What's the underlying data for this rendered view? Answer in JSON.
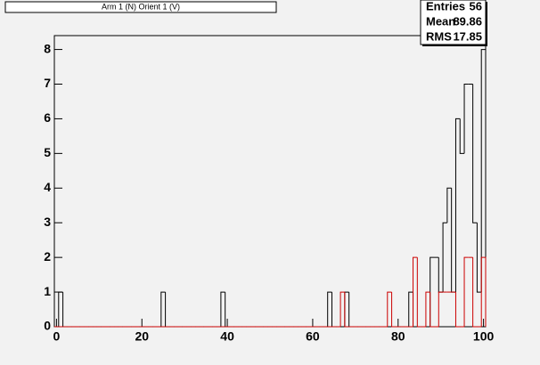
{
  "chart_data": {
    "type": "histogram",
    "title": "Arm 1 (N) Orient 1 (V)",
    "bins": [
      -0.5,
      0.5,
      1.5,
      2.5,
      3.5,
      4.5,
      5.5,
      6.5,
      7.5,
      8.5,
      9.5,
      10.5,
      11.5,
      12.5,
      13.5,
      14.5,
      15.5,
      16.5,
      17.5,
      18.5,
      19.5,
      20.5,
      21.5,
      22.5,
      23.5,
      24.5,
      25.5,
      26.5,
      27.5,
      28.5,
      29.5,
      30.5,
      31.5,
      32.5,
      33.5,
      34.5,
      35.5,
      36.5,
      37.5,
      38.5,
      39.5,
      40.5,
      41.5,
      42.5,
      43.5,
      44.5,
      45.5,
      46.5,
      47.5,
      48.5,
      49.5,
      50.5,
      51.5,
      52.5,
      53.5,
      54.5,
      55.5,
      56.5,
      57.5,
      58.5,
      59.5,
      60.5,
      61.5,
      62.5,
      63.5,
      64.5,
      65.5,
      66.5,
      67.5,
      68.5,
      69.5,
      70.5,
      71.5,
      72.5,
      73.5,
      74.5,
      75.5,
      76.5,
      77.5,
      78.5,
      79.5,
      80.5,
      81.5,
      82.5,
      83.5,
      84.5,
      85.5,
      86.5,
      87.5,
      88.5,
      89.5,
      90.5,
      91.5,
      92.5,
      93.5,
      94.5,
      95.5,
      96.5,
      97.5,
      98.5,
      99.5,
      100.5
    ],
    "series": [
      {
        "color": "#000000",
        "values": [
          0,
          1,
          0,
          0,
          0,
          0,
          0,
          0,
          0,
          0,
          0,
          0,
          0,
          0,
          0,
          0,
          0,
          0,
          0,
          0,
          0,
          0,
          0,
          0,
          0,
          1,
          0,
          0,
          0,
          0,
          0,
          0,
          0,
          0,
          0,
          0,
          0,
          0,
          0,
          1,
          0,
          0,
          0,
          0,
          0,
          0,
          0,
          0,
          0,
          0,
          0,
          0,
          0,
          0,
          0,
          0,
          0,
          0,
          0,
          0,
          0,
          0,
          0,
          0,
          1,
          0,
          0,
          0,
          1,
          0,
          0,
          0,
          0,
          0,
          0,
          0,
          0,
          0,
          0,
          0,
          0,
          0,
          0,
          1,
          0,
          0,
          0,
          0,
          2,
          2,
          1,
          3,
          4,
          1,
          6,
          5,
          7,
          7,
          3,
          1,
          8
        ]
      },
      {
        "color": "#cc0000",
        "values": [
          0,
          0,
          0,
          0,
          0,
          0,
          0,
          0,
          0,
          0,
          0,
          0,
          0,
          0,
          0,
          0,
          0,
          0,
          0,
          0,
          0,
          0,
          0,
          0,
          0,
          0,
          0,
          0,
          0,
          0,
          0,
          0,
          0,
          0,
          0,
          0,
          0,
          0,
          0,
          0,
          0,
          0,
          0,
          0,
          0,
          0,
          0,
          0,
          0,
          0,
          0,
          0,
          0,
          0,
          0,
          0,
          0,
          0,
          0,
          0,
          0,
          0,
          0,
          0,
          0,
          0,
          0,
          1,
          0,
          0,
          0,
          0,
          0,
          0,
          0,
          0,
          0,
          0,
          1,
          0,
          0,
          0,
          0,
          0,
          2,
          0,
          0,
          1,
          0,
          0,
          1,
          1,
          1,
          1,
          0,
          0,
          2,
          2,
          0,
          0,
          2
        ]
      }
    ],
    "xlim": [
      -0.5,
      100.5
    ],
    "xticks": [
      0,
      20,
      40,
      60,
      80,
      100
    ],
    "ylim": [
      0,
      8.4
    ],
    "yticks": [
      0,
      1,
      2,
      3,
      4,
      5,
      6,
      7,
      8
    ],
    "stats": [
      [
        "Entries",
        56
      ],
      [
        "Mean",
        89.86
      ],
      [
        "RMS",
        17.85
      ]
    ]
  }
}
